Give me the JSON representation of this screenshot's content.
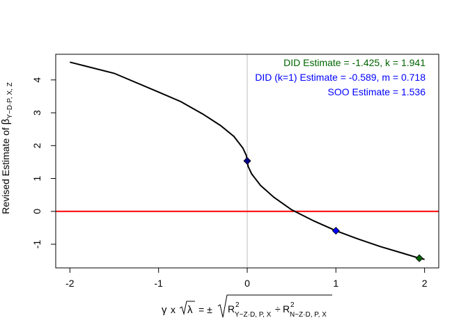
{
  "chart_data": {
    "type": "line",
    "xlim": [
      -2.16,
      2.16
    ],
    "ylim": [
      -1.72,
      4.78
    ],
    "x_ticks": [
      -2,
      -1,
      0,
      1,
      2
    ],
    "x_tick_labels": [
      "-2",
      "-1",
      "0",
      "1",
      "2"
    ],
    "y_ticks": [
      -1,
      0,
      1,
      2,
      3,
      4
    ],
    "y_tick_labels": [
      "-1",
      "0",
      "1",
      "2",
      "3",
      "4"
    ],
    "ylabel_main": "Revised Estimate of ",
    "ylabel_beta": "β",
    "ylabel_sub": "Y~D·P, X, Z",
    "xlabel": {
      "gamma": "γ",
      "x": "x",
      "lambda": "λ",
      "eq": "= ±",
      "r1": "R",
      "r1_sup": "2",
      "r1_sub": "Y~Z·D, P, X",
      "div": "÷",
      "r2": "R",
      "r2_sup": "2",
      "r2_sub": "N~Z·D, P, X"
    },
    "curve": {
      "color": "#000000",
      "x": [
        -2,
        -1.5,
        -1,
        -0.75,
        -0.5,
        -0.3,
        -0.15,
        -0.05,
        -0.01,
        0,
        0.01,
        0.05,
        0.15,
        0.3,
        0.5,
        0.75,
        1,
        1.25,
        1.5,
        1.75,
        1.941,
        2
      ],
      "y": [
        4.54,
        4.2,
        3.63,
        3.34,
        2.96,
        2.61,
        2.28,
        1.93,
        1.7,
        1.536,
        1.37,
        1.14,
        0.79,
        0.43,
        0.05,
        -0.29,
        -0.589,
        -0.84,
        -1.07,
        -1.27,
        -1.425,
        -1.46
      ]
    },
    "reference_lines": {
      "horizontal": {
        "y": 0,
        "color": "#ff0000"
      },
      "vertical": {
        "x": 0,
        "color": "#bebebe"
      }
    },
    "points": [
      {
        "x": 0,
        "y": 1.536,
        "color": "#00008b"
      },
      {
        "x": 1,
        "y": -0.589,
        "color": "#0000ff"
      },
      {
        "x": 1.941,
        "y": -1.425,
        "color": "#006400"
      }
    ],
    "legend": [
      {
        "text": "DID Estimate = -1.425, k = 1.941",
        "color": "#006400"
      },
      {
        "text": "DID (k=1) Estimate = -0.589, m = 0.718",
        "color": "#0000ff"
      },
      {
        "text": "SOO Estimate = 1.536",
        "color": "#0000ff"
      }
    ]
  }
}
